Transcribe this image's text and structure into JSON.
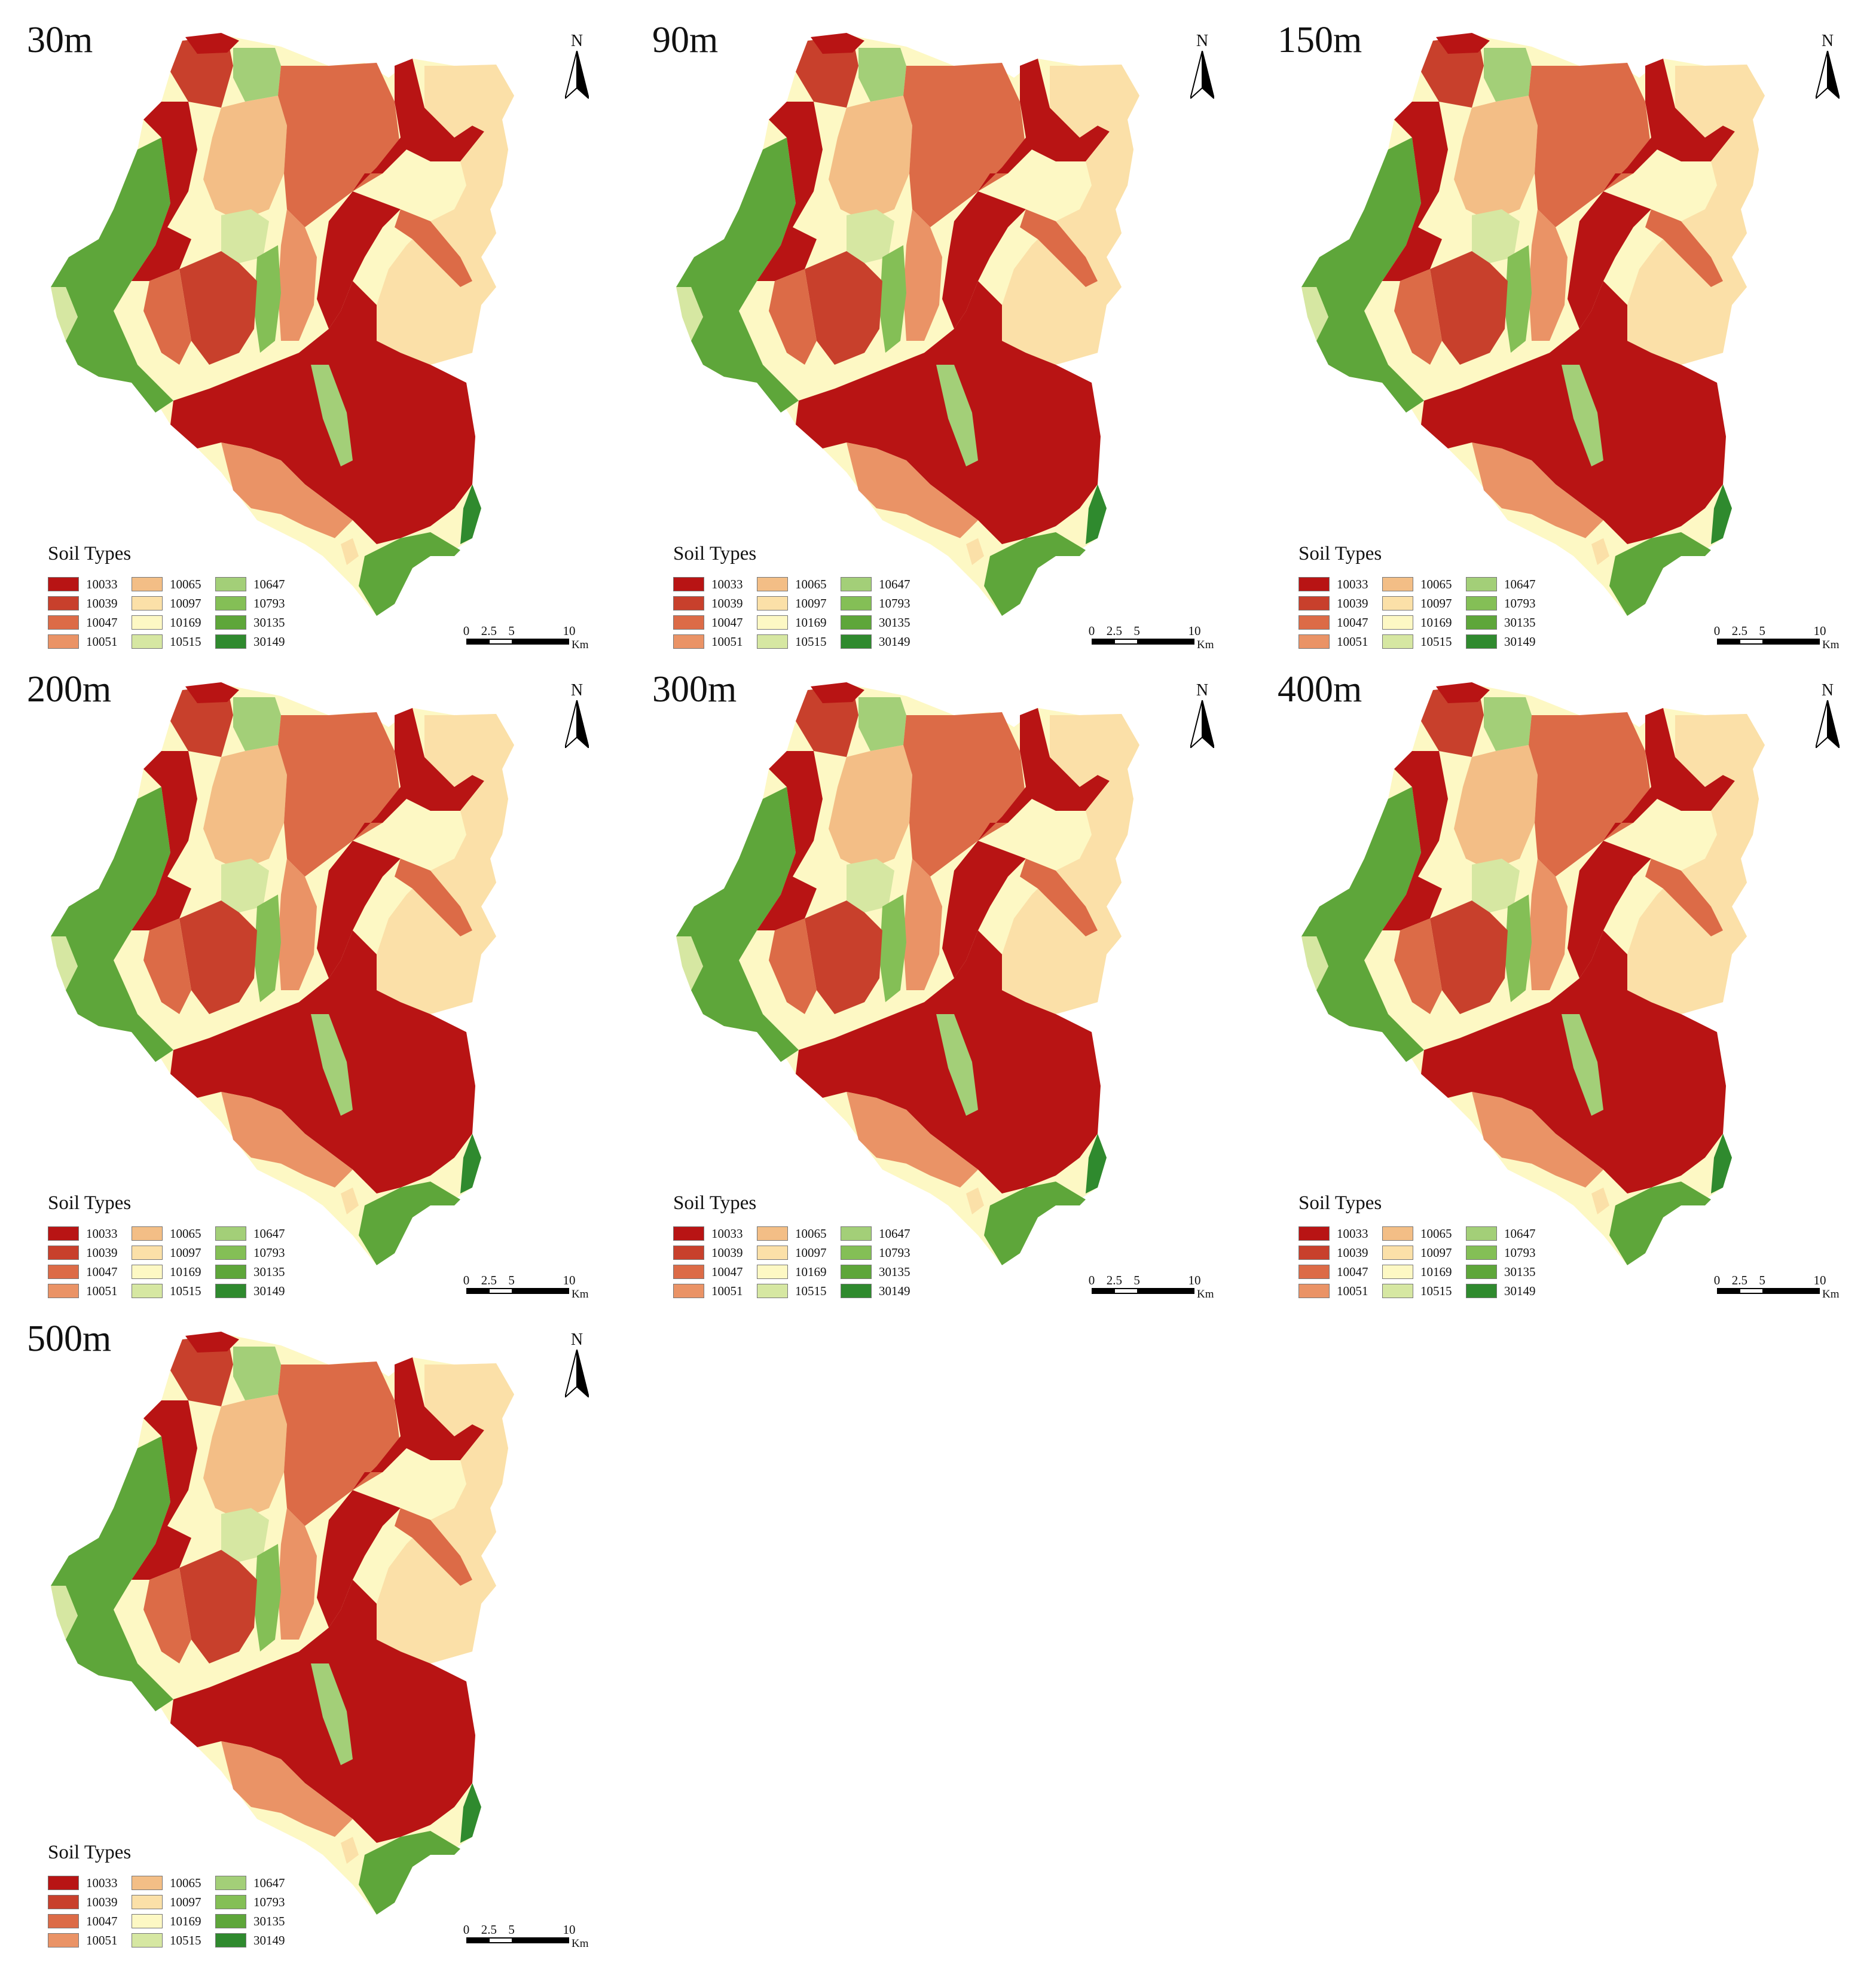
{
  "figure": {
    "panels": [
      {
        "id": "p30",
        "title": "30m"
      },
      {
        "id": "p90",
        "title": "90m"
      },
      {
        "id": "p150",
        "title": "150m"
      },
      {
        "id": "p200",
        "title": "200m"
      },
      {
        "id": "p300",
        "title": "300m"
      },
      {
        "id": "p400",
        "title": "400m"
      },
      {
        "id": "p500",
        "title": "500m"
      }
    ],
    "north_label": "N",
    "legend": {
      "title": "Soil Types",
      "items": [
        {
          "code": "10033",
          "color": "#b81414"
        },
        {
          "code": "10039",
          "color": "#c8402c"
        },
        {
          "code": "10047",
          "color": "#dc6b47"
        },
        {
          "code": "10051",
          "color": "#ea9366"
        },
        {
          "code": "10065",
          "color": "#f3be86"
        },
        {
          "code": "10097",
          "color": "#fbe0a8"
        },
        {
          "code": "10169",
          "color": "#fdf8c4"
        },
        {
          "code": "10515",
          "color": "#d6e7a2"
        },
        {
          "code": "10647",
          "color": "#a3cf78"
        },
        {
          "code": "10793",
          "color": "#84bf56"
        },
        {
          "code": "30135",
          "color": "#5ea63a"
        },
        {
          "code": "30149",
          "color": "#2f8a2e"
        }
      ]
    },
    "scalebar": {
      "ticks": [
        "0",
        "2.5",
        "5",
        "10"
      ],
      "unit": "Km"
    }
  }
}
